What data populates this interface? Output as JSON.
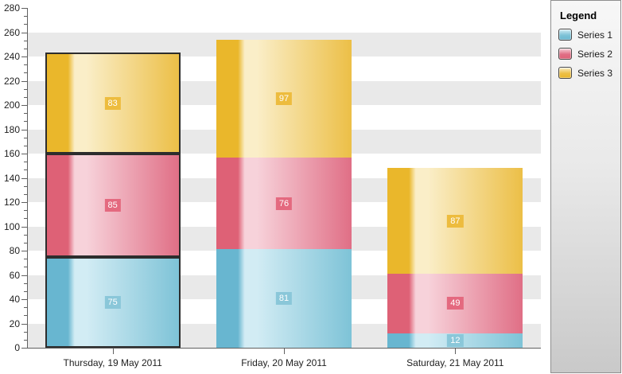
{
  "chart_data": {
    "type": "bar",
    "stacked": true,
    "title": "",
    "legend_title": "Legend",
    "legend_position": "right",
    "categories": [
      "Thursday, 19 May 2011",
      "Friday, 20 May 2011",
      "Saturday, 21 May 2011"
    ],
    "series": [
      {
        "name": "Series 1",
        "values": [
          75,
          81,
          12
        ],
        "color_dark": "#68b6d0",
        "color_light": "#d2ecf4",
        "color_mid": "#7ec3d7",
        "label_bg": "#8ac7d9"
      },
      {
        "name": "Series 2",
        "values": [
          85,
          76,
          49
        ],
        "color_dark": "#de6176",
        "color_light": "#f7d2da",
        "color_mid": "#e06f86",
        "label_bg": "#e4697f"
      },
      {
        "name": "Series 3",
        "values": [
          83,
          97,
          87
        ],
        "color_dark": "#eab72b",
        "color_light": "#faeec8",
        "color_mid": "#ecbf47",
        "label_bg": "#edbc3e"
      }
    ],
    "selected_category_index": 0,
    "selection_border_color": "#2d2d2d",
    "ylim": [
      0,
      280
    ],
    "y_tick_step": 20,
    "y_minor_ticks_per_interval": 2,
    "y_tick_labels": [
      "0",
      "20",
      "40",
      "60",
      "80",
      "100",
      "120",
      "140",
      "160",
      "180",
      "200",
      "220",
      "240",
      "260",
      "280"
    ],
    "grid_stripes": true,
    "stripe_color": "#e9e9e9",
    "axis_color": "#606060",
    "axis_label_color": "#1f1f1f",
    "value_labels_visible": true,
    "value_label_text_color": "#ffffff"
  }
}
